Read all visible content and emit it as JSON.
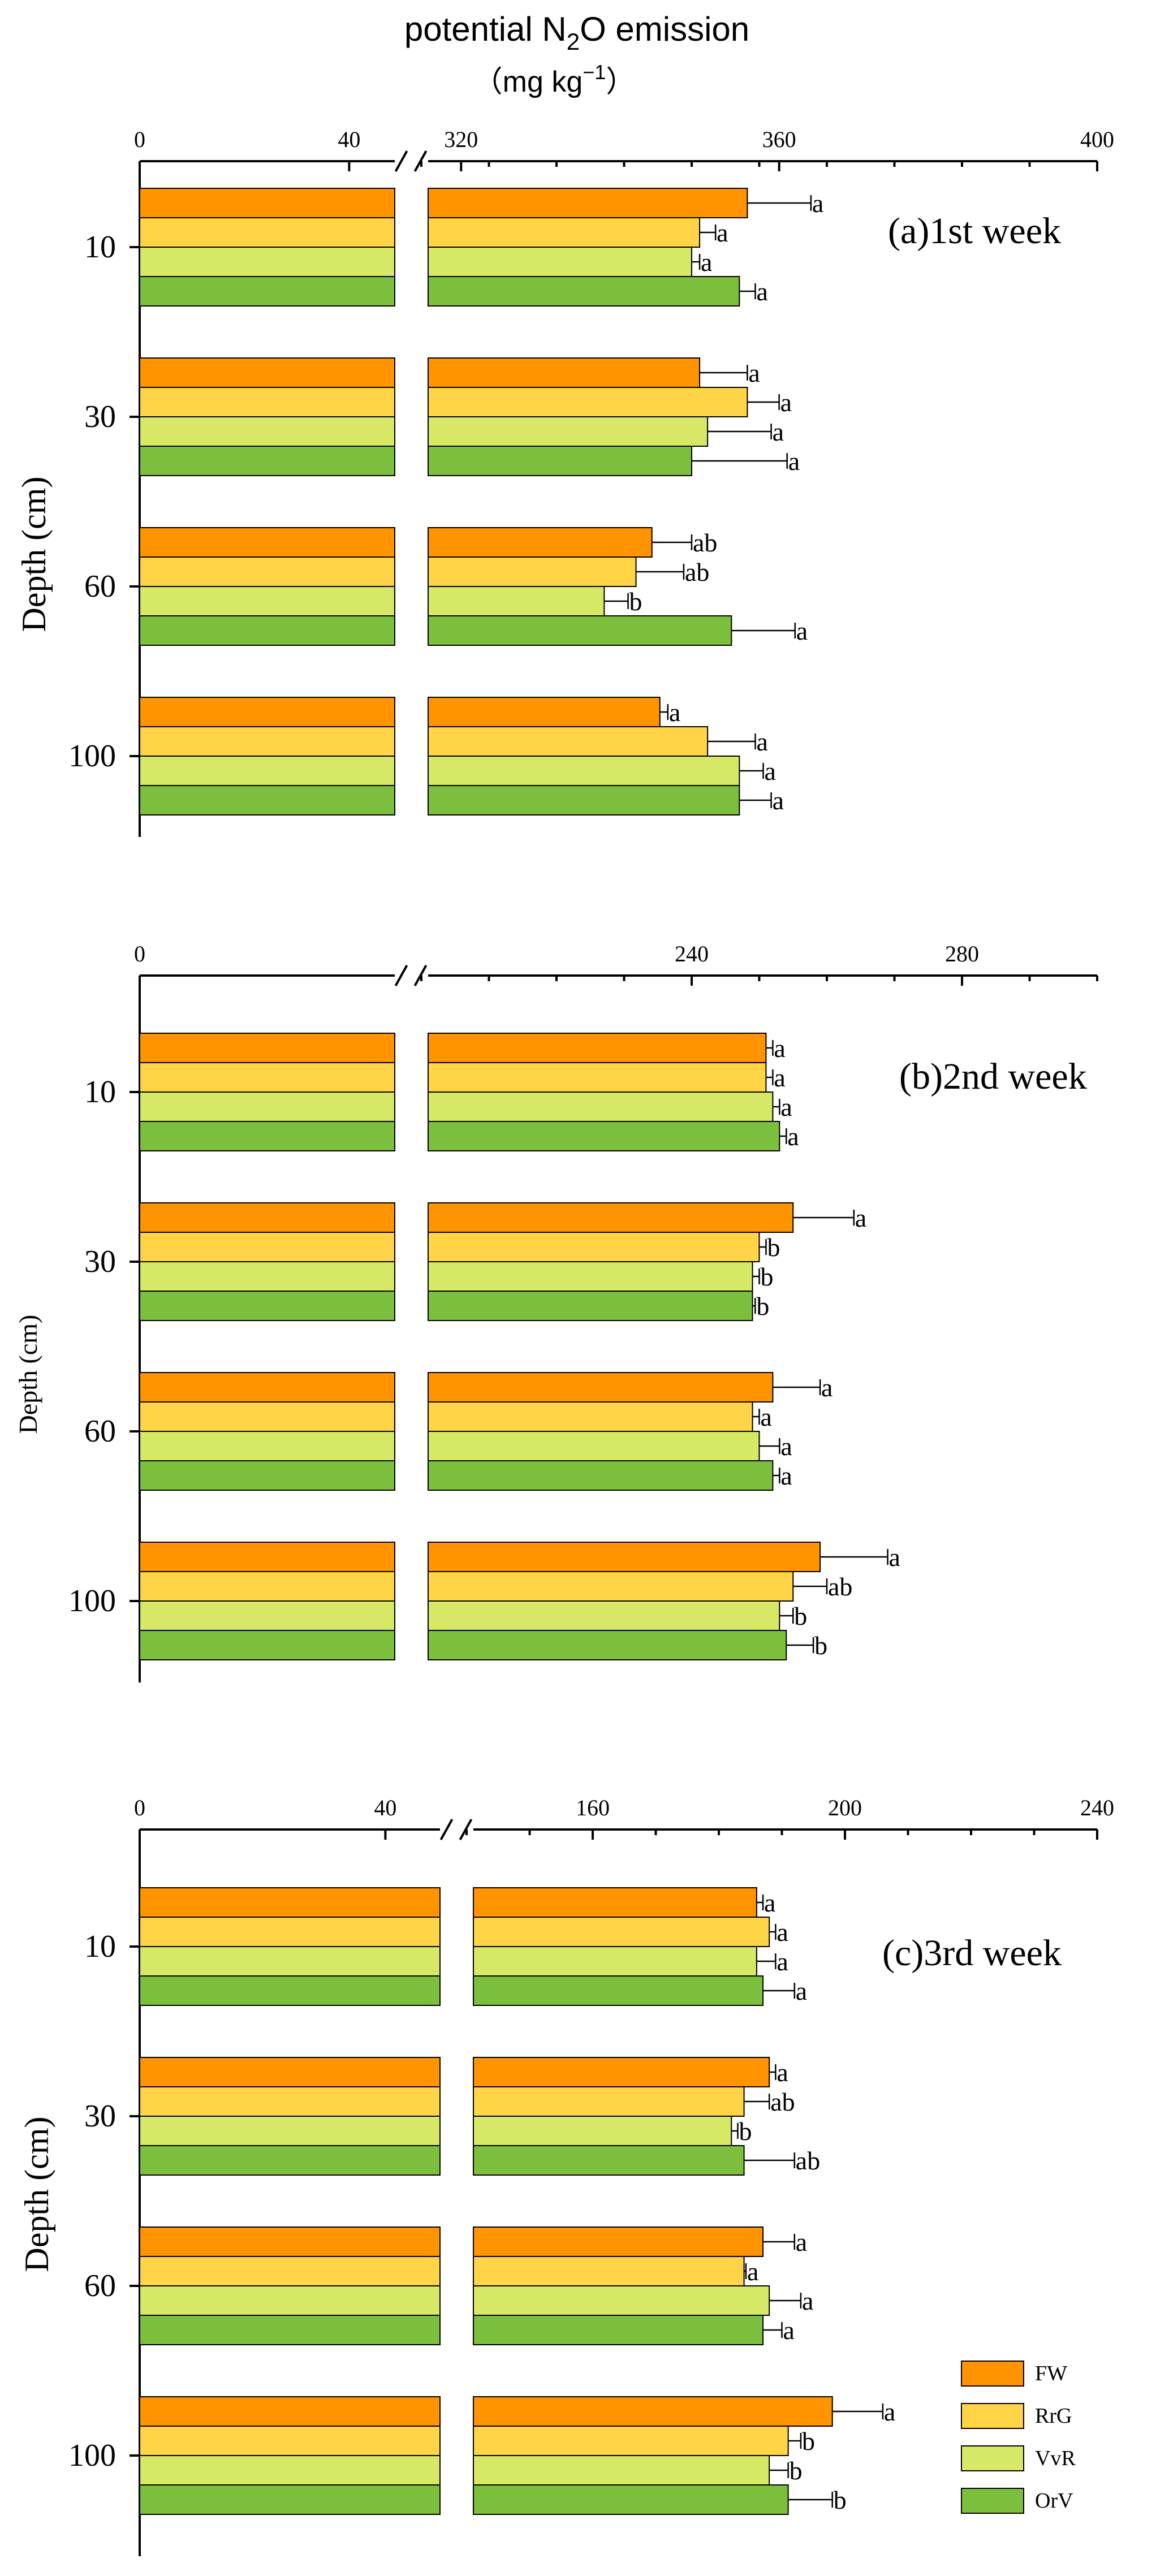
{
  "colors": {
    "FW": "#ff9300",
    "RrG": "#ffd447",
    "VvR": "#d6e866",
    "OrV": "#7cbf3c"
  },
  "title": {
    "main": "potential N",
    "sub": "2",
    "rest": "O emission",
    "unit_open": "（mg  kg",
    "unit_sup": "−1",
    "unit_close": "）"
  },
  "chart_data": [
    {
      "type": "bar",
      "orientation": "horizontal",
      "panel_label": "(a)1st week",
      "ylabel": "Depth (cm)",
      "categories": [
        "10",
        "30",
        "60",
        "100"
      ],
      "axis_broken": true,
      "axis_segments": [
        [
          0,
          50
        ],
        [
          315,
          400
        ]
      ],
      "tick_labels": [
        "0",
        "40",
        "320",
        "360",
        "400"
      ],
      "series": [
        {
          "name": "FW",
          "values": [
            356,
            350,
            344,
            345
          ],
          "errors": [
            8,
            6,
            5,
            1
          ],
          "letters": [
            "a",
            "a",
            "ab",
            "a"
          ]
        },
        {
          "name": "RrG",
          "values": [
            350,
            356,
            342,
            351
          ],
          "errors": [
            2,
            4,
            6,
            6
          ],
          "letters": [
            "a",
            "a",
            "ab",
            "a"
          ]
        },
        {
          "name": "VvR",
          "values": [
            349,
            351,
            338,
            355
          ],
          "errors": [
            1,
            8,
            3,
            3
          ],
          "letters": [
            "a",
            "a",
            "b",
            "a"
          ]
        },
        {
          "name": "OrV",
          "values": [
            355,
            349,
            354,
            355
          ],
          "errors": [
            2,
            12,
            8,
            4
          ],
          "letters": [
            "a",
            "a",
            "a",
            "a"
          ]
        }
      ]
    },
    {
      "type": "bar",
      "orientation": "horizontal",
      "panel_label": "(b)2nd week",
      "ylabel": "Depth (cm)",
      "categories": [
        "10",
        "30",
        "60",
        "100"
      ],
      "axis_broken": true,
      "axis_segments": [
        [
          0,
          50
        ],
        [
          200,
          300
        ]
      ],
      "tick_labels": [
        "0",
        "240",
        "280"
      ],
      "series": [
        {
          "name": "FW",
          "values": [
            251,
            255,
            252,
            259
          ],
          "errors": [
            1,
            9,
            7,
            10
          ],
          "letters": [
            "a",
            "a",
            "a",
            "a"
          ]
        },
        {
          "name": "RrG",
          "values": [
            251,
            250,
            249,
            255
          ],
          "errors": [
            1,
            1,
            1,
            5
          ],
          "letters": [
            "a",
            "b",
            "a",
            "ab"
          ]
        },
        {
          "name": "VvR",
          "values": [
            252,
            249,
            250,
            253
          ],
          "errors": [
            1,
            1,
            3,
            2
          ],
          "letters": [
            "a",
            "b",
            "a",
            "b"
          ]
        },
        {
          "name": "OrV",
          "values": [
            253,
            249,
            252,
            254
          ],
          "errors": [
            1,
            0.4,
            1,
            4
          ],
          "letters": [
            "a",
            "b",
            "a",
            "b"
          ]
        }
      ]
    },
    {
      "type": "bar",
      "orientation": "horizontal",
      "panel_label": "(c)3rd week",
      "ylabel": "Depth (cm)",
      "categories": [
        "10",
        "30",
        "60",
        "100"
      ],
      "axis_broken": true,
      "axis_segments": [
        [
          0,
          50
        ],
        [
          140,
          240
        ]
      ],
      "tick_labels": [
        "0",
        "40",
        "160",
        "200",
        "240"
      ],
      "series": [
        {
          "name": "FW",
          "values": [
            186,
            188,
            187,
            198
          ],
          "errors": [
            1,
            1,
            5,
            8
          ],
          "letters": [
            "a",
            "a",
            "a",
            "a"
          ]
        },
        {
          "name": "RrG",
          "values": [
            188,
            184,
            184,
            191
          ],
          "errors": [
            1,
            4,
            0.3,
            2
          ],
          "letters": [
            "a",
            "ab",
            "a",
            "b"
          ]
        },
        {
          "name": "VvR",
          "values": [
            186,
            182,
            188,
            188
          ],
          "errors": [
            3,
            1,
            5,
            3
          ],
          "letters": [
            "a",
            "b",
            "a",
            "b"
          ]
        },
        {
          "name": "OrV",
          "values": [
            187,
            184,
            187,
            191
          ],
          "errors": [
            5,
            8,
            3,
            7
          ],
          "letters": [
            "a",
            "ab",
            "a",
            "b"
          ]
        }
      ]
    }
  ],
  "legend": {
    "items": [
      "FW",
      "RrG",
      "VvR",
      "OrV"
    ]
  }
}
